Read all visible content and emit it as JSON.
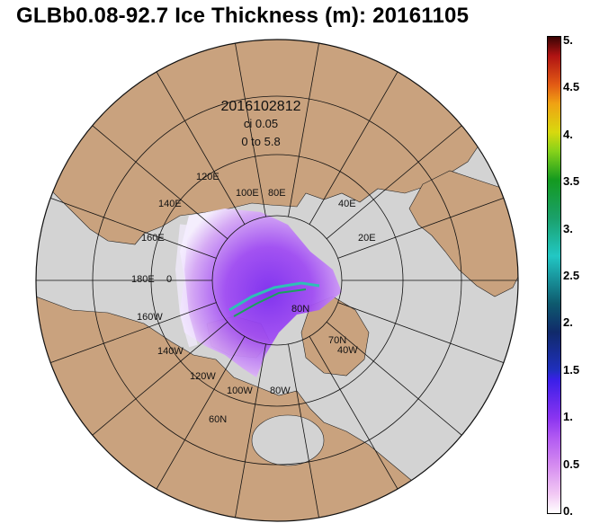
{
  "title": "GLBb0.08-92.7 Ice Thickness (m): 20161105",
  "annotation": {
    "datetime": "2016102812",
    "ci": "ci 0.05",
    "range": "0 to 5.8"
  },
  "longitude_labels": [
    "120E",
    "100E",
    "80E",
    "140E",
    "40E",
    "160E",
    "20E",
    "180E",
    "0",
    "160W",
    "80N",
    "70N",
    "40W",
    "140W",
    "120W",
    "100W",
    "80W",
    "60N"
  ],
  "colorbar": {
    "ticks": [
      "5.",
      "4.5",
      "4.",
      "3.5",
      "3.",
      "2.5",
      "2.",
      "1.5",
      "1.",
      "0.5",
      "0."
    ]
  },
  "colors": {
    "land": "#c9a27e",
    "ocean": "#d3d3d3",
    "ice_low": "#f0e4ff",
    "ice_mid": "#9b45f2",
    "ice_high": "#2fbfb6"
  }
}
